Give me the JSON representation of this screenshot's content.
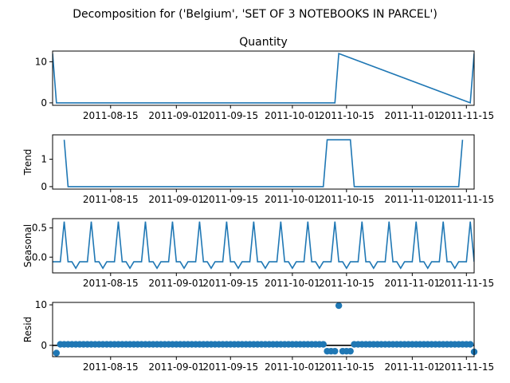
{
  "figure_title": "Decomposition for ('Belgium', 'SET OF 3 NOTEBOOKS IN PARCEL')",
  "colors": {
    "series": "#1f77b4",
    "axis": "#000000",
    "zero_line": "#000000"
  },
  "x_ticks": [
    "2011-08-15",
    "2011-09-01",
    "2011-09-15",
    "2011-10-01",
    "2011-10-15",
    "2011-11-01",
    "2011-11-15"
  ],
  "chart_data": [
    {
      "type": "line",
      "title": "Quantity",
      "ylabel": "",
      "ylim": [
        -0.6,
        12.6
      ],
      "yticks": [
        "0",
        "10"
      ],
      "x_range": [
        "2011-07-31",
        "2011-11-17"
      ],
      "x": [
        "2011-07-31",
        "2011-08-01",
        "2011-10-12",
        "2011-10-13",
        "2011-11-16",
        "2011-11-17"
      ],
      "values": [
        12,
        0,
        0,
        12,
        0,
        12
      ]
    },
    {
      "type": "line",
      "title": "",
      "ylabel": "Trend",
      "ylim": [
        -0.09,
        1.89
      ],
      "yticks": [
        "0",
        "1"
      ],
      "x_range": [
        "2011-07-31",
        "2011-11-17"
      ],
      "x": [
        "2011-08-03",
        "2011-08-04",
        "2011-10-09",
        "2011-10-10",
        "2011-10-16",
        "2011-10-17",
        "2011-11-13",
        "2011-11-14"
      ],
      "values": [
        1.71,
        0,
        0,
        1.71,
        1.71,
        0,
        0,
        1.71
      ]
    },
    {
      "type": "line",
      "title": "",
      "ylabel": "Seasonal",
      "ylim": [
        -0.27,
        0.66
      ],
      "yticks": [
        "0.0",
        "0.5"
      ],
      "x_range": [
        "2011-07-31",
        "2011-11-17"
      ],
      "period_start": "2011-07-31",
      "pattern": [
        -0.08,
        -0.08,
        -0.08,
        0.61,
        -0.08,
        -0.08,
        -0.19
      ]
    },
    {
      "type": "scatter",
      "title": "",
      "ylabel": "Resid",
      "ylim": [
        -2.8,
        10.6
      ],
      "yticks": [
        "0",
        "10"
      ],
      "x_range": [
        "2011-07-31",
        "2011-11-17"
      ],
      "x_start": "2011-08-01",
      "x_end": "2011-11-17",
      "baseline": 0,
      "default_value": 0.25,
      "special": {
        "2011-08-01": -1.9,
        "2011-10-10": -1.45,
        "2011-10-11": -1.45,
        "2011-10-12": -1.45,
        "2011-10-13": 9.8,
        "2011-10-14": -1.45,
        "2011-10-15": -1.45,
        "2011-10-16": -1.45,
        "2011-11-17": -1.6
      }
    }
  ]
}
